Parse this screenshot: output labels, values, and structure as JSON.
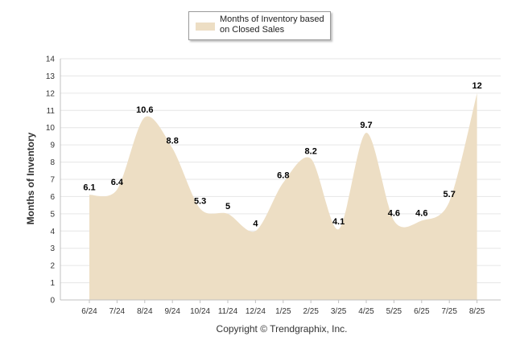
{
  "legend": {
    "label": "Months of Inventory based on Closed Sales"
  },
  "footer": {
    "copyright": "Copyright © Trendgraphix, Inc."
  },
  "colors": {
    "area": "#eddec4",
    "grid": "#e6e6e6",
    "axis": "#c0c0c0"
  },
  "chart_data": {
    "type": "area",
    "ylabel": "Months of Inventory",
    "xlabel": "",
    "ylim": [
      0,
      14
    ],
    "yticks": [
      0,
      1,
      2,
      3,
      4,
      5,
      6,
      7,
      8,
      9,
      10,
      11,
      12,
      13,
      14
    ],
    "grid": true,
    "legend_position": "top-center",
    "categories": [
      "6/24",
      "7/24",
      "8/24",
      "9/24",
      "10/24",
      "11/24",
      "12/24",
      "1/25",
      "2/25",
      "3/25",
      "4/25",
      "5/25",
      "6/25",
      "7/25",
      "8/25"
    ],
    "series": [
      {
        "name": "Months of Inventory based on Closed Sales",
        "values": [
          6.1,
          6.4,
          10.6,
          8.8,
          5.3,
          5,
          4,
          6.8,
          8.2,
          4.1,
          9.7,
          4.6,
          4.6,
          5.7,
          12
        ]
      }
    ]
  }
}
